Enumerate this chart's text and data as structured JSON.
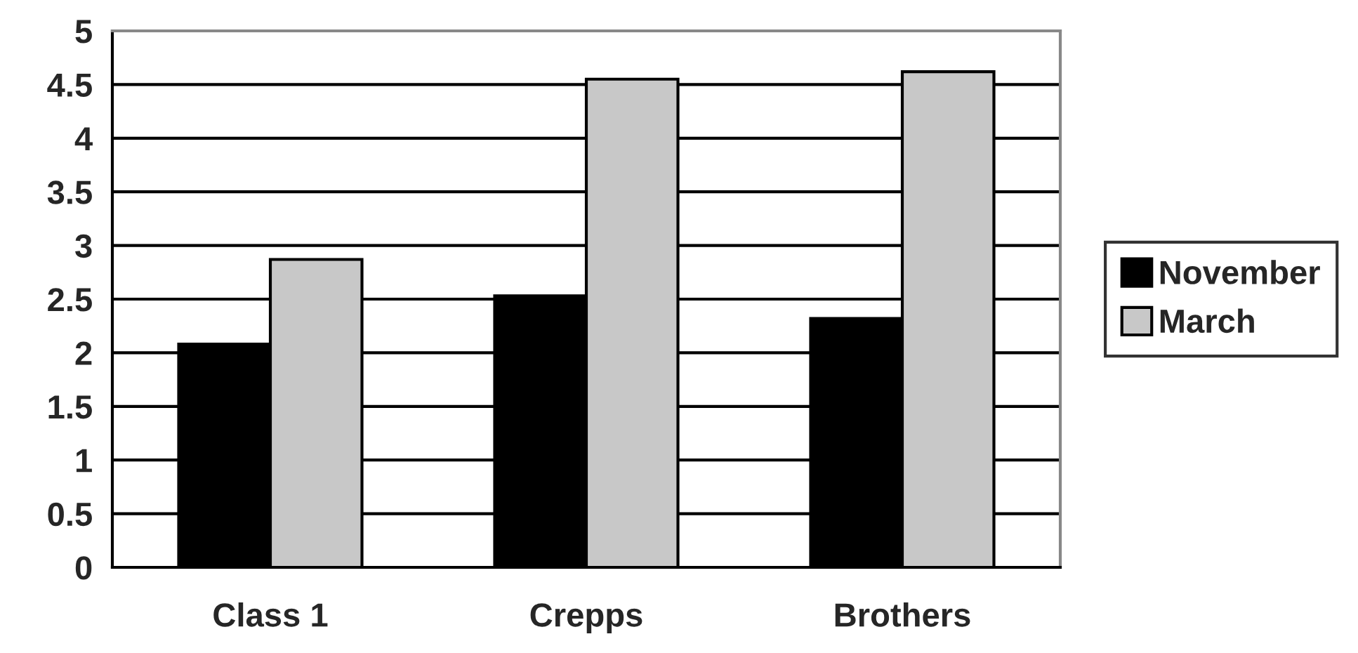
{
  "chart_data": {
    "type": "bar",
    "categories": [
      "Class 1",
      "Crepps",
      "Brothers"
    ],
    "series": [
      {
        "name": "November",
        "color": "#000000",
        "values": [
          2.08,
          2.53,
          2.32
        ]
      },
      {
        "name": "March",
        "color": "#c8c8c8",
        "values": [
          2.87,
          4.55,
          4.62
        ]
      }
    ],
    "ylim": [
      0,
      5
    ],
    "yticks": [
      0,
      0.5,
      1,
      1.5,
      2,
      2.5,
      3,
      3.5,
      4,
      4.5,
      5
    ],
    "grid": "y",
    "legend": "right"
  }
}
